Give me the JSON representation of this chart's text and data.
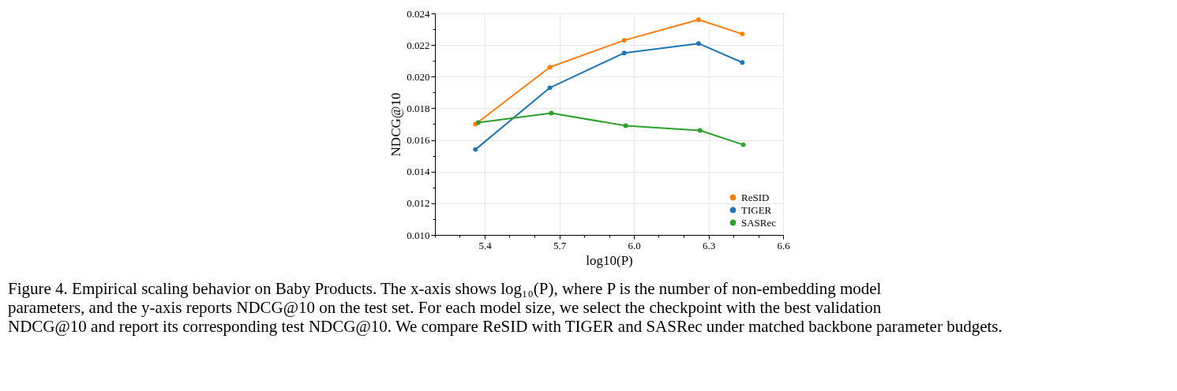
{
  "chart_data": {
    "type": "line",
    "xlabel": "log10(P)",
    "ylabel": "NDCG@10",
    "xlim": [
      5.2,
      6.6
    ],
    "ylim": [
      0.01,
      0.024
    ],
    "xticks": [
      {
        "value": 5.2,
        "label": null
      },
      {
        "value": 5.3,
        "label": null
      },
      {
        "value": 5.4,
        "label": "5.4"
      },
      {
        "value": 5.5,
        "label": null
      },
      {
        "value": 5.6,
        "label": null
      },
      {
        "value": 5.7,
        "label": "5.7"
      },
      {
        "value": 5.8,
        "label": null
      },
      {
        "value": 5.9,
        "label": null
      },
      {
        "value": 6.0,
        "label": "6.0"
      },
      {
        "value": 6.1,
        "label": null
      },
      {
        "value": 6.2,
        "label": null
      },
      {
        "value": 6.3,
        "label": "6.3"
      },
      {
        "value": 6.4,
        "label": null
      },
      {
        "value": 6.5,
        "label": null
      },
      {
        "value": 6.6,
        "label": "6.6"
      }
    ],
    "yticks": [
      {
        "value": 0.01,
        "label": "0.010"
      },
      {
        "value": 0.011,
        "label": null
      },
      {
        "value": 0.012,
        "label": "0.012"
      },
      {
        "value": 0.013,
        "label": null
      },
      {
        "value": 0.014,
        "label": "0.014"
      },
      {
        "value": 0.015,
        "label": null
      },
      {
        "value": 0.016,
        "label": "0.016"
      },
      {
        "value": 0.017,
        "label": null
      },
      {
        "value": 0.018,
        "label": "0.018"
      },
      {
        "value": 0.019,
        "label": null
      },
      {
        "value": 0.02,
        "label": "0.020"
      },
      {
        "value": 0.021,
        "label": null
      },
      {
        "value": 0.022,
        "label": "0.022"
      },
      {
        "value": 0.023,
        "label": null
      },
      {
        "value": 0.024,
        "label": "0.024"
      }
    ],
    "series": [
      {
        "name": "ReSID",
        "color": "#ff7f0e",
        "x": [
          5.363,
          5.662,
          5.961,
          6.26,
          6.436
        ],
        "values": [
          0.017,
          0.0206,
          0.0223,
          0.0236,
          0.0227
        ]
      },
      {
        "name": "TIGER",
        "color": "#1f77b4",
        "x": [
          5.363,
          5.662,
          5.961,
          6.26,
          6.436
        ],
        "values": [
          0.0154,
          0.0193,
          0.0215,
          0.0221,
          0.0209
        ]
      },
      {
        "name": "SASRec",
        "color": "#2ca02c",
        "x": [
          5.374,
          5.668,
          5.967,
          6.266,
          6.44
        ],
        "values": [
          0.0171,
          0.0177,
          0.0169,
          0.0166,
          0.0157
        ]
      }
    ],
    "marker": "circle",
    "line_style": "solid",
    "grid": true,
    "legend": "bottom right",
    "annotations": [
      "Figure 4. Empirical scaling behavior on Baby Products. The x-axis shows log₁₀(P), where P is the number of non-embedding model parameters, and the y-axis reports NDCG@10 on the test set. For each model size, we select the checkpoint with the best validation NDCG@10 and report its corresponding test NDCG@10. We compare ReSID with TIGER and SASRec under matched backbone parameter budgets."
    ]
  }
}
